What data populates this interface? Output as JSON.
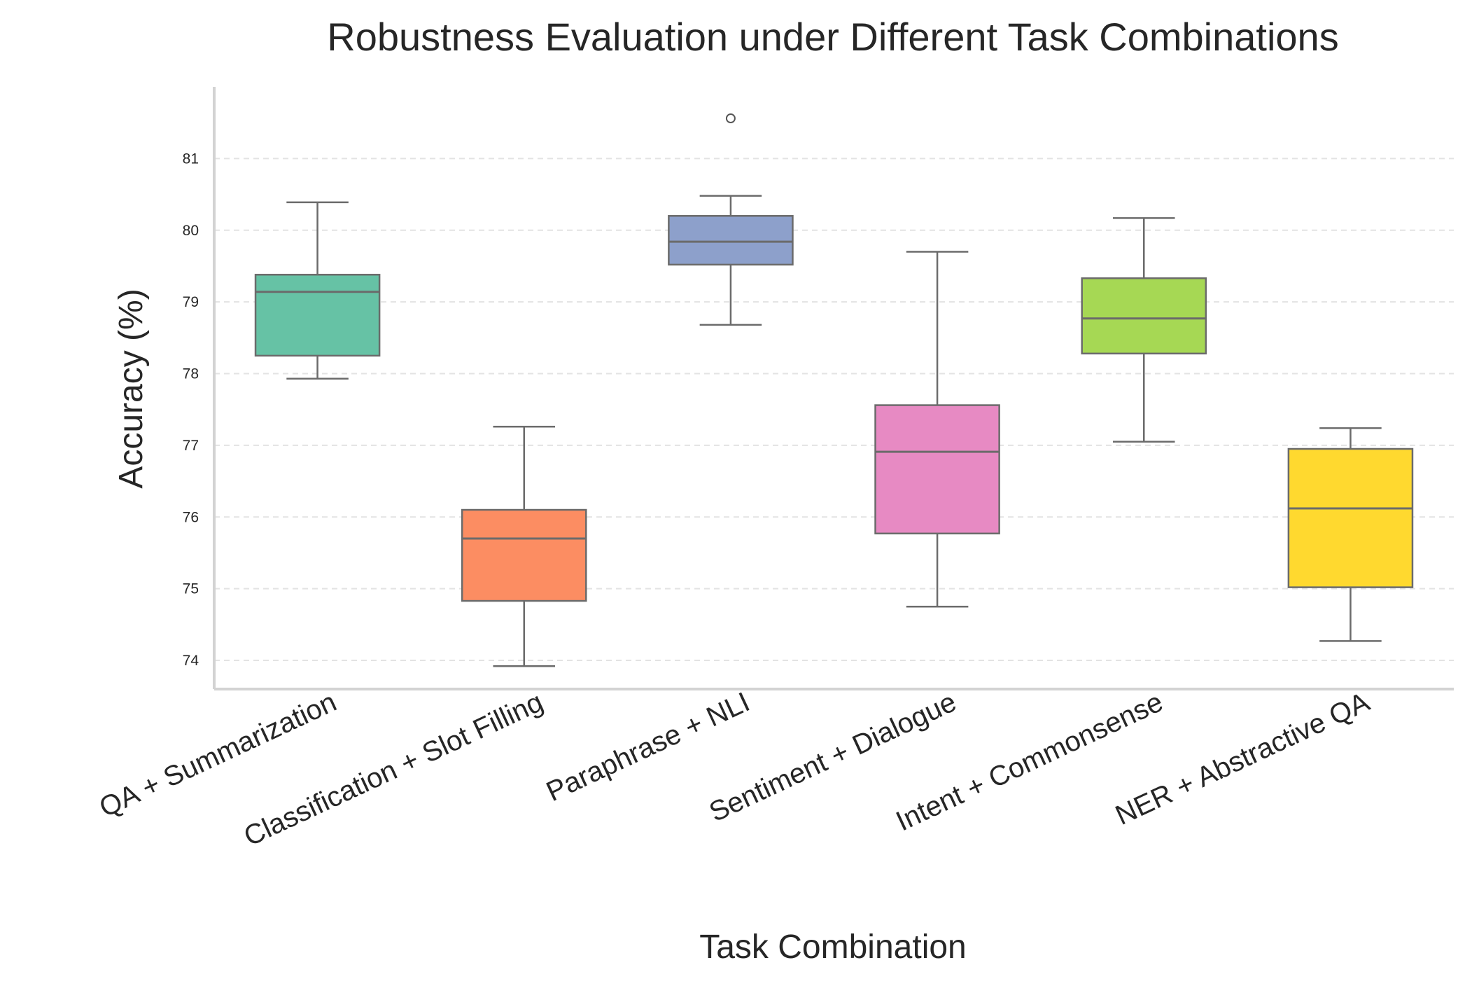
{
  "chart_data": {
    "type": "box",
    "title": "Robustness Evaluation under Different Task Combinations",
    "xlabel": "Task Combination",
    "ylabel": "Accuracy (%)",
    "ylim": [
      73.6,
      82.0
    ],
    "yticks": [
      74,
      75,
      76,
      77,
      78,
      79,
      80,
      81
    ],
    "grid": "y-dashed",
    "series": [
      {
        "name": "QA + Summarization",
        "color": "#66c2a5",
        "whisker_low": 77.93,
        "q1": 78.25,
        "median": 79.14,
        "q3": 79.38,
        "whisker_high": 80.39,
        "outliers": []
      },
      {
        "name": "Classification + Slot Filling",
        "color": "#fc8d62",
        "whisker_low": 73.92,
        "q1": 74.83,
        "median": 75.7,
        "q3": 76.1,
        "whisker_high": 77.26,
        "outliers": []
      },
      {
        "name": "Paraphrase + NLI",
        "color": "#8da0cb",
        "whisker_low": 78.68,
        "q1": 79.52,
        "median": 79.84,
        "q3": 80.2,
        "whisker_high": 80.48,
        "outliers": [
          81.56
        ]
      },
      {
        "name": "Sentiment + Dialogue",
        "color": "#e78ac3",
        "whisker_low": 74.75,
        "q1": 75.77,
        "median": 76.91,
        "q3": 77.56,
        "whisker_high": 79.7,
        "outliers": []
      },
      {
        "name": "Intent + Commonsense",
        "color": "#a6d854",
        "whisker_low": 77.05,
        "q1": 78.28,
        "median": 78.77,
        "q3": 79.33,
        "whisker_high": 80.17,
        "outliers": []
      },
      {
        "name": "NER + Abstractive QA",
        "color": "#ffd92f",
        "whisker_low": 74.27,
        "q1": 75.02,
        "median": 76.12,
        "q3": 76.95,
        "whisker_high": 77.24,
        "outliers": []
      }
    ]
  }
}
